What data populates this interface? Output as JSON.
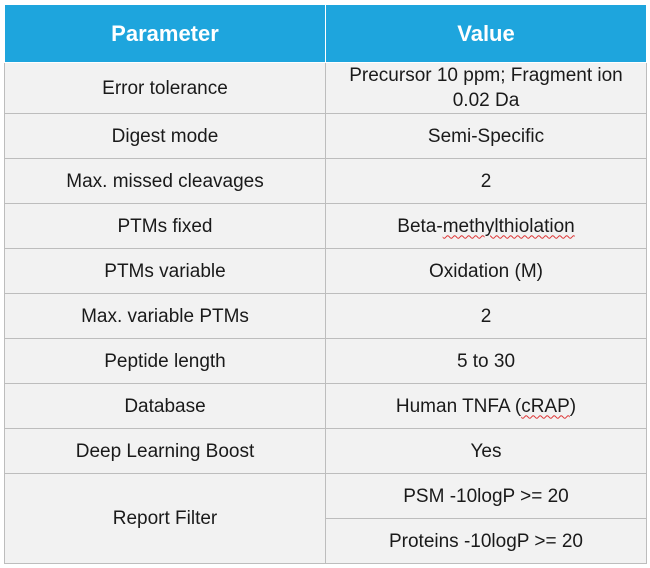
{
  "table": {
    "headers": [
      "Parameter",
      "Value"
    ],
    "rows": [
      {
        "param": "Error tolerance",
        "value": "Precursor 10 ppm; Fragment ion 0.02 Da"
      },
      {
        "param": "Digest mode",
        "value": "Semi-Specific"
      },
      {
        "param": "Max. missed cleavages",
        "value": "2"
      },
      {
        "param": "PTMs fixed",
        "value_prefix": "Beta-",
        "value_flagged": "methylthiolation"
      },
      {
        "param": "PTMs variable",
        "value": "Oxidation (M)"
      },
      {
        "param": "Max. variable PTMs",
        "value": "2"
      },
      {
        "param": "Peptide length",
        "value": "5 to 30"
      },
      {
        "param": "Database",
        "value_prefix": "Human TNFA (",
        "value_flagged": "cRAP",
        "value_suffix": ")"
      },
      {
        "param": "Deep Learning Boost",
        "value": "Yes"
      }
    ],
    "report_filter": {
      "param": "Report Filter",
      "values": [
        "PSM -10logP >= 20",
        "Proteins -10logP >= 20"
      ]
    }
  }
}
